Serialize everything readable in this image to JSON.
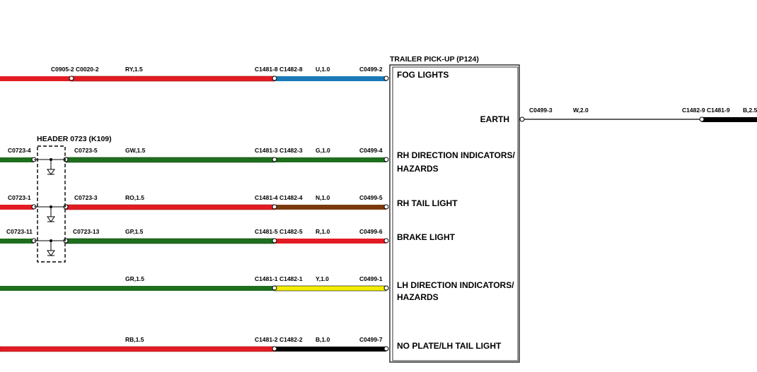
{
  "colors": {
    "red": "#e31b23",
    "green": "#1e6e1e",
    "blue": "#1a7ab8",
    "brown": "#7a3a0e",
    "yellow": "#f2ee00",
    "black": "#000000"
  },
  "trailer_pickup": {
    "title": "TRAILER PICK-UP (P124)",
    "earth_label": "EARTH",
    "pins": [
      "FOG LIGHTS",
      "RH DIRECTION INDICATORS/",
      "HAZARDS",
      "RH TAIL LIGHT",
      "BRAKE LIGHT",
      "LH DIRECTION INDICATORS/",
      "HAZARDS",
      "NO PLATE/LH TAIL LIGHT"
    ]
  },
  "header": {
    "title": "HEADER 0723 (K109)"
  },
  "circuits": [
    {
      "left_connector": "C0905-2 C0020-2",
      "wire1": "RY,1.5",
      "mid_connector": "C1481-8 C1482-8",
      "wire2": "U,1.0",
      "right_connector": "C0499-2"
    },
    {
      "left_connector": "C0723-4",
      "header_connector": "C0723-5",
      "wire1": "GW,1.5",
      "mid_connector": "C1481-3 C1482-3",
      "wire2": "G,1.0",
      "right_connector": "C0499-4"
    },
    {
      "left_connector": "C0723-1",
      "header_connector": "C0723-3",
      "wire1": "RO,1.5",
      "mid_connector": "C1481-4 C1482-4",
      "wire2": "N,1.0",
      "right_connector": "C0499-5"
    },
    {
      "left_connector": "C0723-11",
      "header_connector": "C0723-13",
      "wire1": "GP,1.5",
      "mid_connector": "C1481-5 C1482-5",
      "wire2": "R,1.0",
      "right_connector": "C0499-6"
    },
    {
      "wire1": "GR,1.5",
      "mid_connector": "C1481-1 C1482-1",
      "wire2": "Y,1.0",
      "right_connector": "C0499-1"
    },
    {
      "wire1": "RB,1.5",
      "mid_connector": "C1481-2 C1482-2",
      "wire2": "B,1.0",
      "right_connector": "C0499-7"
    }
  ],
  "earth_circuit": {
    "left_connector": "C0499-3",
    "wire1": "W,2.0",
    "mid_connector": "C1482-9 C1481-9",
    "wire2": "B,2.5"
  }
}
